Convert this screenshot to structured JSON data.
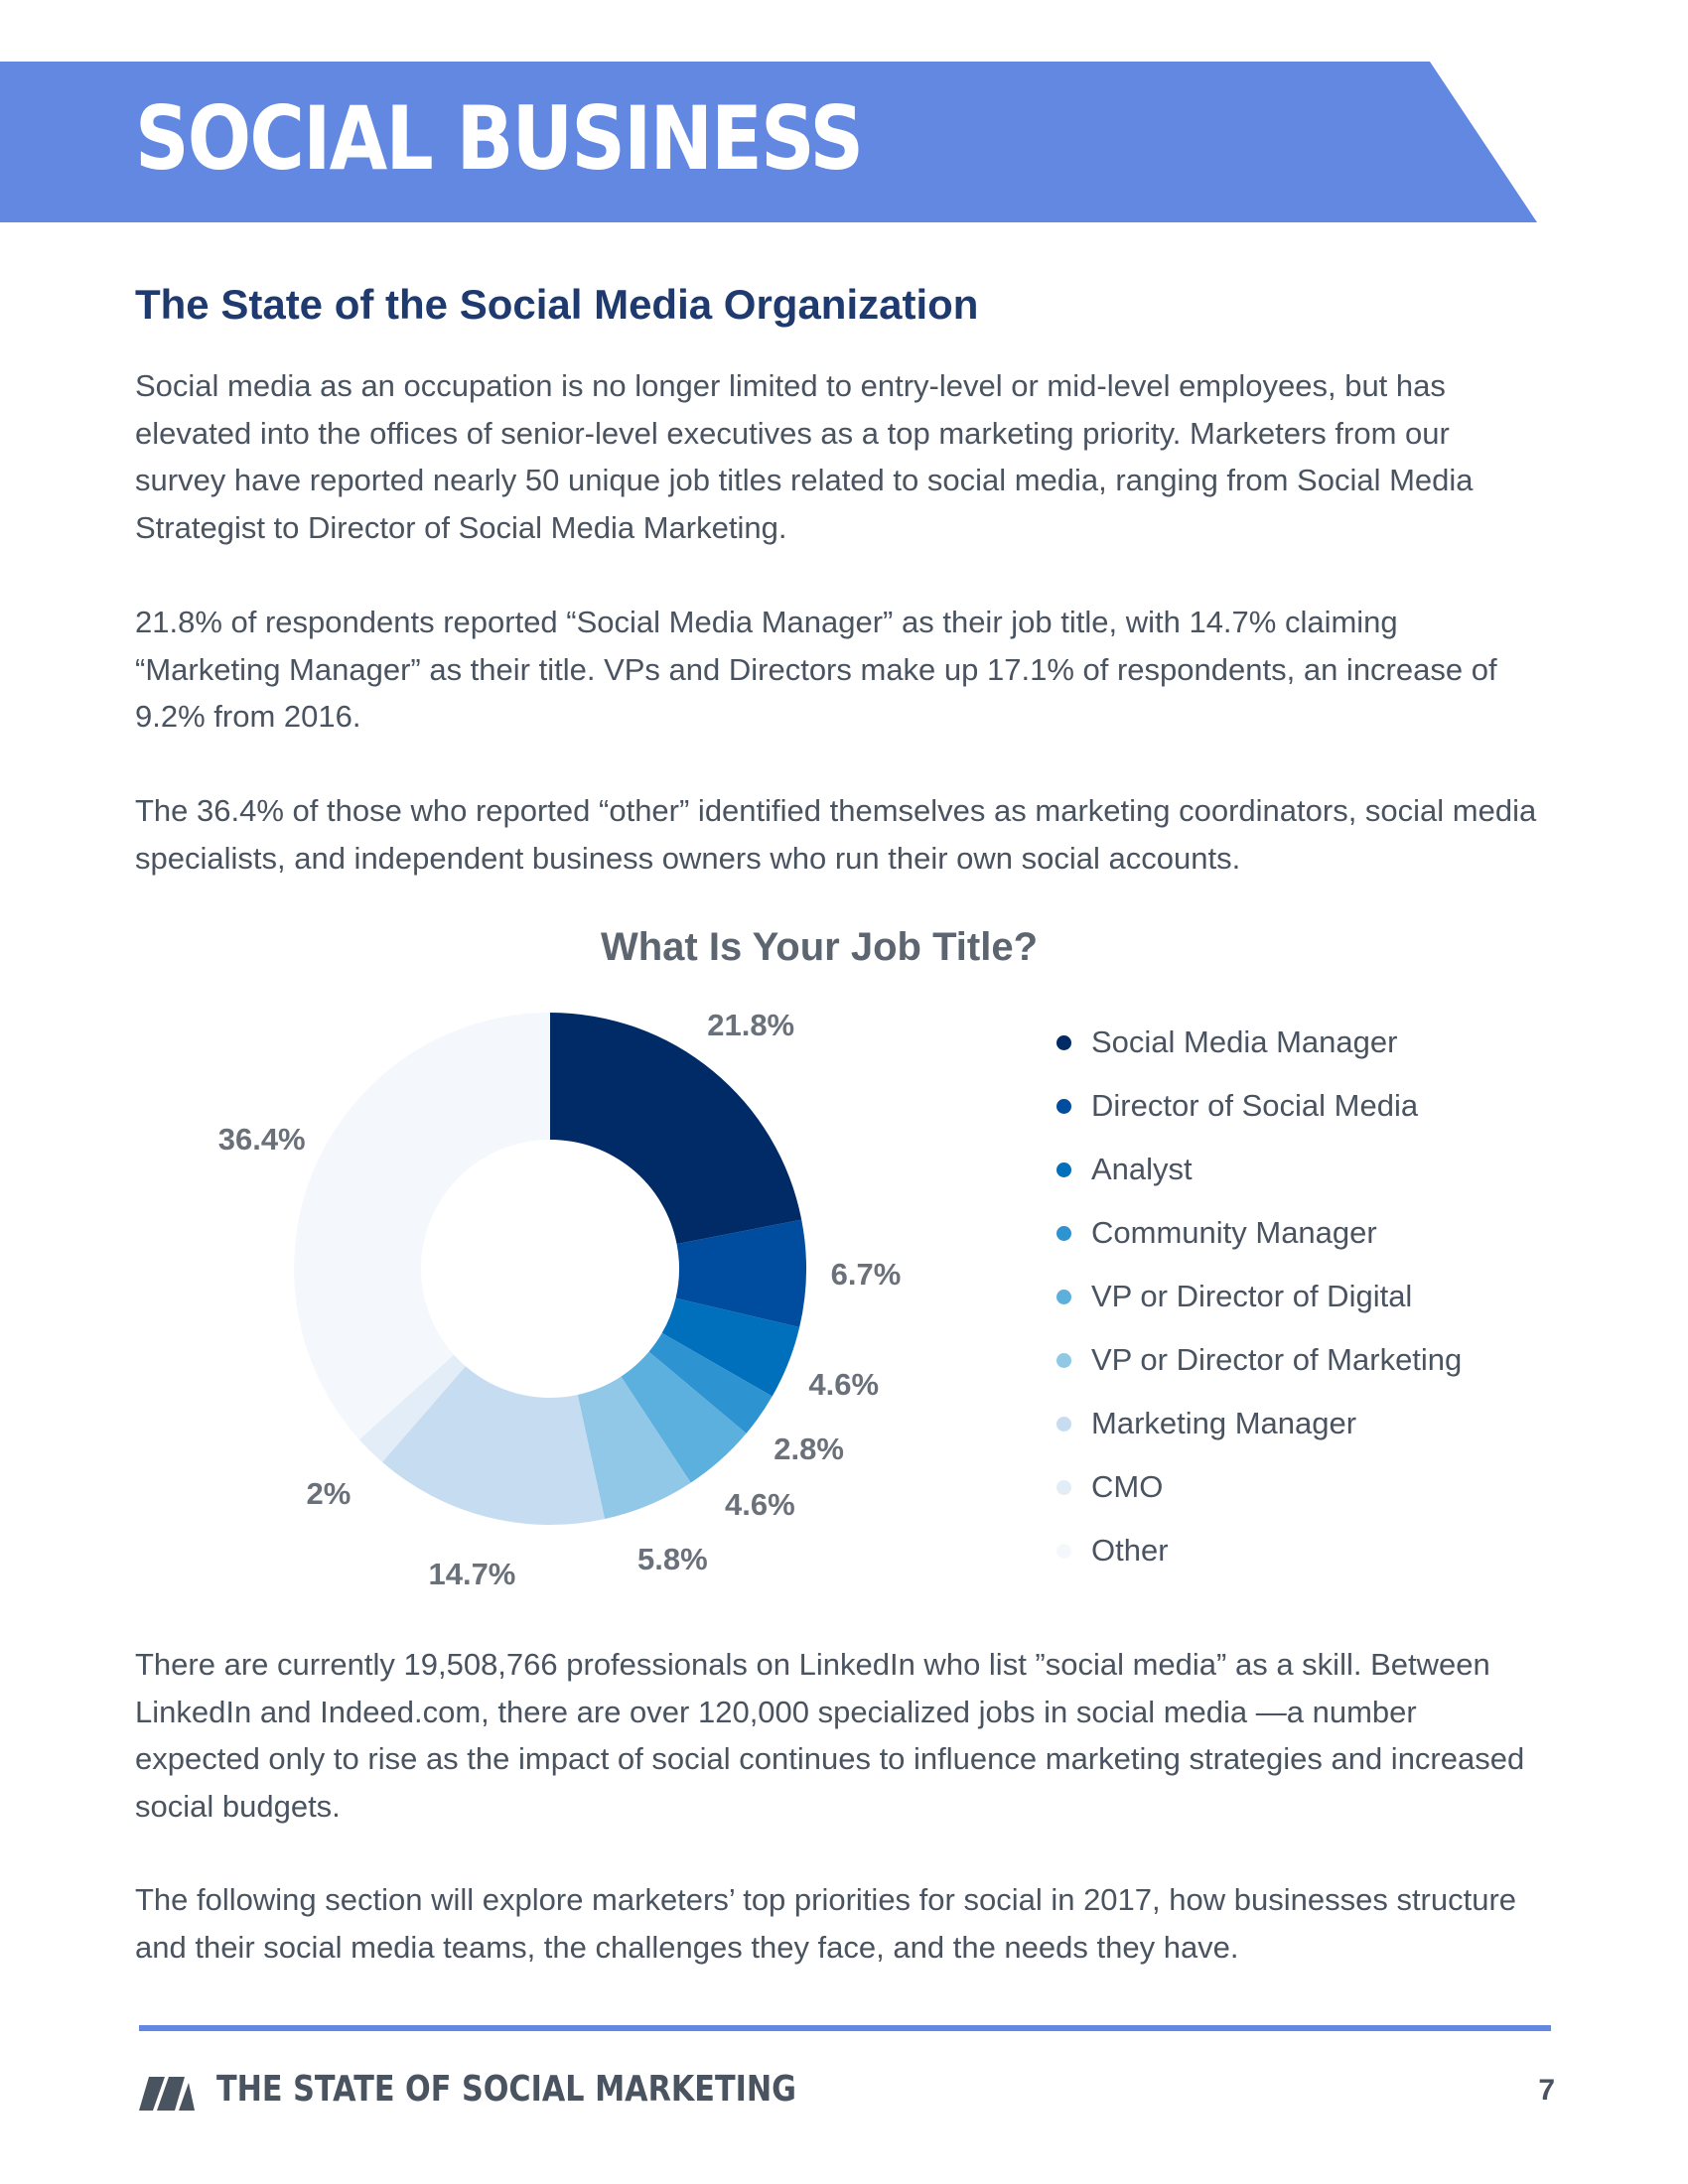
{
  "header": {
    "banner_title": "SOCIAL BUSINESS",
    "banner_color": "#6288e2"
  },
  "section": {
    "heading": "The State of the Social Media Organization",
    "paragraphs": [
      "Social media as an occupation is no longer limited to entry-level or mid-level employees, but has elevated into the offices of senior-level executives as a top marketing priority. Marketers from our survey have reported nearly 50 unique job titles related to social media, ranging from Social Media Strategist to Director of Social Media Marketing.",
      "21.8% of respondents reported “Social Media Manager” as their job title, with 14.7% claiming “Marketing Manager” as their title. VPs and Directors make up 17.1% of respondents, an increase of 9.2% from 2016.",
      "The 36.4% of those who reported “other” identified themselves as marketing coordinators, social media specialists, and independent business owners who run their own social accounts.",
      "There are currently 19,508,766 professionals on LinkedIn who list ”social media” as a skill. Between LinkedIn and Indeed.com, there are over 120,000 specialized jobs in social media —a number expected only to rise as the impact of social continues to influence marketing strategies and increased social budgets.",
      "The following section will explore marketers’ top priorities for social in 2017, how businesses structure and their social media teams, the challenges they face, and the needs they have."
    ]
  },
  "chart_data": {
    "type": "pie",
    "title": "What Is Your Job Title?",
    "legend_position": "right",
    "slices": [
      {
        "label": "Social Media Manager",
        "value": 21.8,
        "value_label": "21.8%",
        "color": "#002b67"
      },
      {
        "label": "Director of Social Media",
        "value": 6.7,
        "value_label": "6.7%",
        "color": "#004c9e"
      },
      {
        "label": "Analyst",
        "value": 4.6,
        "value_label": "4.6%",
        "color": "#0070bc"
      },
      {
        "label": "Community Manager",
        "value": 2.8,
        "value_label": "2.8%",
        "color": "#2e93d1"
      },
      {
        "label": "VP or Director of Digital",
        "value": 4.6,
        "value_label": "4.6%",
        "color": "#5cb0de"
      },
      {
        "label": "VP or Director of Marketing",
        "value": 5.8,
        "value_label": "5.8%",
        "color": "#92c8e7"
      },
      {
        "label": "Marketing Manager",
        "value": 14.7,
        "value_label": "14.7%",
        "color": "#c5dcf1"
      },
      {
        "label": "CMO",
        "value": 2,
        "value_label": "2%",
        "color": "#e2edf8"
      },
      {
        "label": "Other",
        "value": 36.4,
        "value_label": "36.4%",
        "color": "#f4f8fd"
      }
    ]
  },
  "footer": {
    "title": "THE STATE OF SOCIAL MARKETING",
    "page_number": "7",
    "rule_color": "#6288e2"
  }
}
